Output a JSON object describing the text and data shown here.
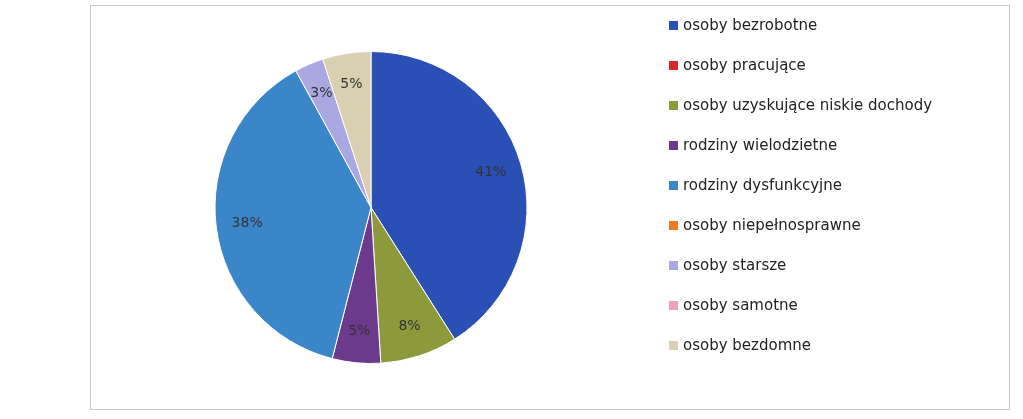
{
  "chart_data": {
    "type": "pie",
    "categories": [
      "osoby bezrobotne",
      "osoby pracujące",
      "osoby uzyskujące niskie dochody",
      "rodziny wielodzietne",
      "rodziny dysfunkcyjne",
      "osoby niepełnosprawne",
      "osoby starsze",
      "osoby samotne",
      "osoby bezdomne"
    ],
    "values": [
      41,
      0,
      8,
      5,
      38,
      0,
      3,
      0,
      5
    ],
    "colors": [
      "#2a4fb5",
      "#d9262b",
      "#8d9a3c",
      "#6b3a8c",
      "#3a86c8",
      "#f07a22",
      "#a9a8e0",
      "#f0a0b8",
      "#d8d0b0"
    ],
    "value_labels": [
      "41%",
      null,
      "8%",
      "5%",
      "38%",
      null,
      "3%",
      null,
      "5%"
    ],
    "legend": "right"
  }
}
